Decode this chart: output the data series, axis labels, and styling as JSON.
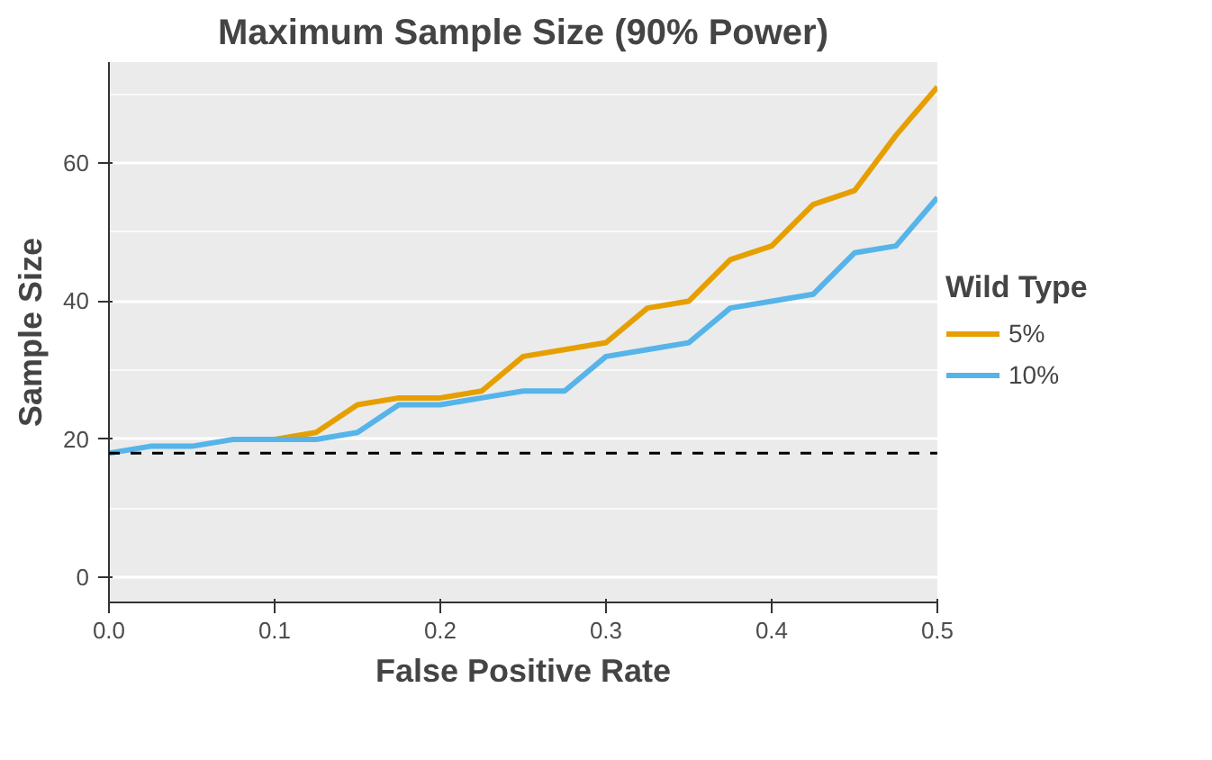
{
  "chart_data": {
    "type": "line",
    "title": "Maximum Sample Size (90% Power)",
    "xlabel": "False Positive Rate",
    "ylabel": "Sample Size",
    "legend_title": "Wild Type",
    "x": [
      0,
      0.025,
      0.05,
      0.075,
      0.1,
      0.125,
      0.15,
      0.175,
      0.2,
      0.225,
      0.25,
      0.275,
      0.3,
      0.325,
      0.35,
      0.375,
      0.4,
      0.425,
      0.45,
      0.475,
      0.5
    ],
    "series": [
      {
        "name": "5%",
        "color": "#e69f00",
        "values": [
          null,
          null,
          null,
          null,
          20,
          21,
          25,
          26,
          26,
          27,
          32,
          33,
          34,
          39,
          40,
          46,
          48,
          54,
          56,
          64,
          71
        ]
      },
      {
        "name": "10%",
        "color": "#56b4e9",
        "values": [
          18,
          19,
          19,
          20,
          20,
          20,
          21,
          25,
          25,
          26,
          27,
          27,
          32,
          33,
          34,
          39,
          40,
          41,
          47,
          48,
          55
        ]
      }
    ],
    "xlim": [
      0,
      0.5
    ],
    "ylim": [
      -3.6,
      74.6
    ],
    "xticks": [
      {
        "value": 0,
        "label": "0.0"
      },
      0.1,
      0.2,
      0.3,
      0.4,
      0.5
    ],
    "yticks": [
      0,
      20,
      40,
      60
    ],
    "ref_lines": [
      {
        "axis": "y",
        "value": 18,
        "color": "#000000",
        "line_style": "dashed"
      }
    ],
    "grid": true,
    "legend": "right",
    "line_style": "solid"
  }
}
